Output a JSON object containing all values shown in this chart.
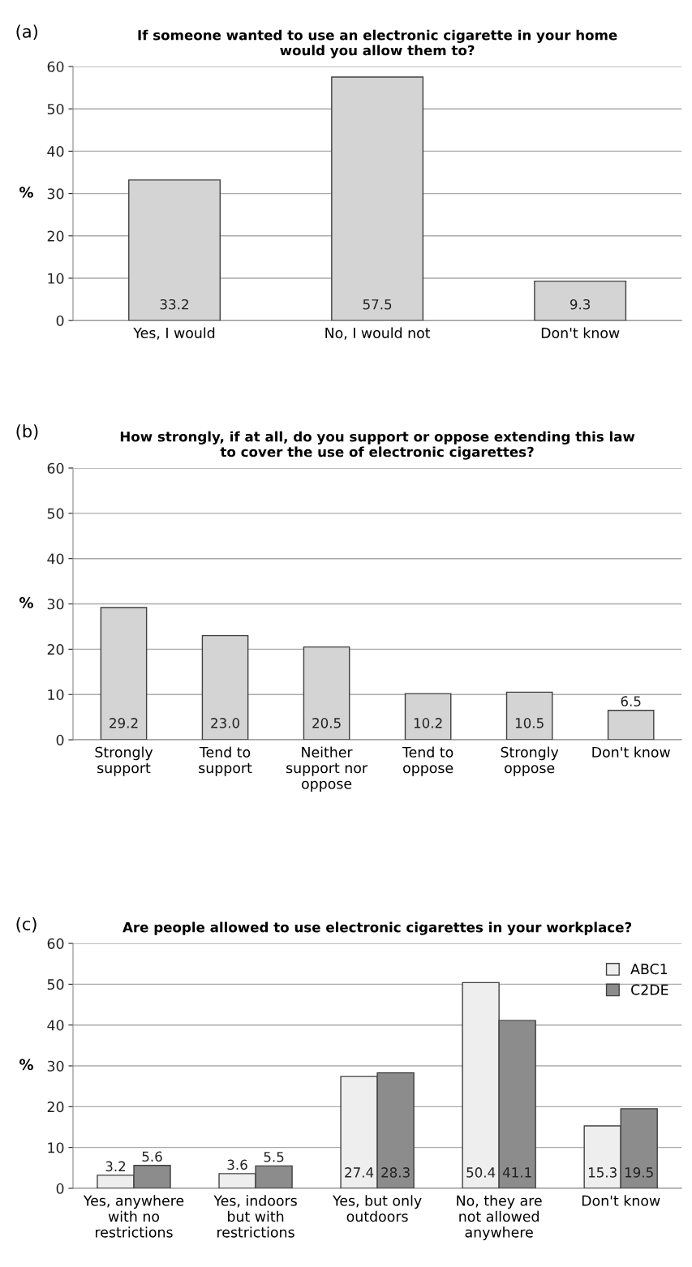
{
  "chart_data": [
    {
      "type": "bar",
      "title": "If someone wanted to use an electronic cigarette in your home\nwould you allow them to?",
      "ylabel": "%",
      "annotations": [
        "(a)"
      ],
      "categories": [
        "Yes, I would",
        "No, I would not",
        "Don't know"
      ],
      "values": [
        33.2,
        57.5,
        9.3
      ],
      "color": "#d4d4d4",
      "ylim": [
        0,
        60
      ],
      "yticks": [
        0,
        10,
        20,
        30,
        40,
        50,
        60
      ],
      "grid": "y",
      "data_labels": true
    },
    {
      "type": "bar",
      "title": "How strongly, if at all, do you support or oppose extending this law\nto cover the use of electronic cigarettes?",
      "ylabel": "%",
      "annotations": [
        "(b)"
      ],
      "categories": [
        "Strongly\nsupport",
        "Tend to\nsupport",
        "Neither\nsupport nor\noppose",
        "Tend to\noppose",
        "Strongly\noppose",
        "Don't know"
      ],
      "value_labels": [
        "29.2",
        "23.0",
        "20.5",
        "10.2",
        "10.5",
        "6.5"
      ],
      "values": [
        29.2,
        23.0,
        20.5,
        10.2,
        10.5,
        6.5
      ],
      "color": "#d4d4d4",
      "ylim": [
        0,
        60
      ],
      "yticks": [
        0,
        10,
        20,
        30,
        40,
        50,
        60
      ],
      "grid": "y"
    },
    {
      "type": "bar",
      "title": "Are people allowed to use electronic cigarettes in your workplace?",
      "ylabel": "%",
      "annotations": [
        "(c)"
      ],
      "categories": [
        "Yes, anywhere\nwith no\nrestrictions",
        "Yes, indoors\nbut with\nrestrictions",
        "Yes, but only\noutdoors",
        "No, they are\nnot allowed\nanywhere",
        "Don't know"
      ],
      "series": [
        {
          "name": "ABC1",
          "color": "#eeeeee",
          "values": [
            3.2,
            3.6,
            27.4,
            50.4,
            15.3
          ]
        },
        {
          "name": "C2DE",
          "color": "#8c8c8c",
          "values": [
            5.6,
            5.5,
            28.3,
            41.1,
            19.5
          ]
        }
      ],
      "ylim": [
        0,
        60
      ],
      "yticks": [
        0,
        10,
        20,
        30,
        40,
        50,
        60
      ],
      "grid": "y",
      "legend": "top right",
      "data_labels": true
    }
  ]
}
